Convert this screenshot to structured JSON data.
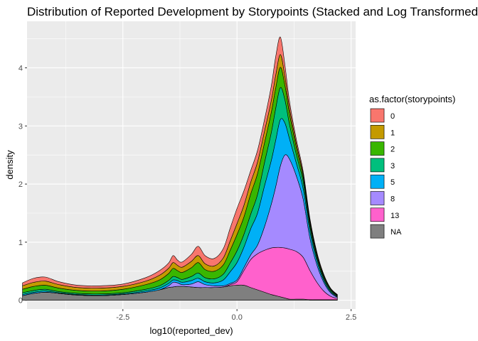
{
  "chart_data": {
    "type": "area",
    "stacked": true,
    "title": "Distribution of Reported Development by Storypoints (Stacked and Log Transformed)",
    "xlabel": "log10(reported_dev)",
    "ylabel": "density",
    "xlim": [
      -4.6,
      2.6
    ],
    "ylim": [
      -0.15,
      4.8
    ],
    "x_ticks": [
      -2.5,
      0.0,
      2.5
    ],
    "x_tick_labels": [
      "-2.5",
      "0.0",
      "2.5"
    ],
    "y_ticks": [
      0,
      1,
      2,
      3,
      4
    ],
    "y_tick_labels": [
      "0",
      "1",
      "2",
      "3",
      "4"
    ],
    "grid": true,
    "legend": {
      "title": "as.factor(storypoints)",
      "position": "right"
    },
    "x": [
      -4.7,
      -4.45,
      -4.2,
      -3.9,
      -3.5,
      -3.0,
      -2.5,
      -2.0,
      -1.7,
      -1.5,
      -1.4,
      -1.3,
      -1.2,
      -1.0,
      -0.85,
      -0.7,
      -0.5,
      -0.3,
      -0.15,
      0.0,
      0.15,
      0.3,
      0.45,
      0.6,
      0.75,
      0.85,
      0.95,
      1.05,
      1.15,
      1.3,
      1.45,
      1.6,
      1.75,
      1.9,
      2.05,
      2.2
    ],
    "series": [
      {
        "name": "NA",
        "color": "#7f7f7f",
        "values": [
          0.08,
          0.12,
          0.14,
          0.12,
          0.09,
          0.08,
          0.1,
          0.14,
          0.18,
          0.22,
          0.23,
          0.24,
          0.24,
          0.23,
          0.22,
          0.22,
          0.22,
          0.23,
          0.25,
          0.26,
          0.26,
          0.22,
          0.18,
          0.14,
          0.1,
          0.08,
          0.06,
          0.04,
          0.02,
          0.02,
          0.02,
          0.01,
          0.01,
          0.01,
          0.01,
          0.01
        ]
      },
      {
        "name": "13",
        "color": "#ff61cc",
        "values": [
          0.0,
          0.0,
          0.0,
          0.0,
          0.0,
          0.0,
          0.0,
          0.0,
          0.0,
          0.0,
          0.0,
          0.0,
          0.0,
          0.0,
          0.0,
          0.0,
          0.0,
          0.0,
          0.02,
          0.06,
          0.25,
          0.48,
          0.62,
          0.72,
          0.8,
          0.83,
          0.85,
          0.86,
          0.86,
          0.82,
          0.72,
          0.5,
          0.3,
          0.15,
          0.06,
          0.02
        ]
      },
      {
        "name": "8",
        "color": "#a58aff",
        "values": [
          0.0,
          0.0,
          0.0,
          0.0,
          0.0,
          0.0,
          0.0,
          0.0,
          0.0,
          0.03,
          0.08,
          0.06,
          0.03,
          0.05,
          0.1,
          0.05,
          0.03,
          0.02,
          0.02,
          0.03,
          0.05,
          0.08,
          0.15,
          0.4,
          0.75,
          1.05,
          1.4,
          1.6,
          1.55,
          1.3,
          1.0,
          0.55,
          0.3,
          0.15,
          0.06,
          0.02
        ]
      },
      {
        "name": "5",
        "color": "#00b0f6",
        "values": [
          0.02,
          0.02,
          0.02,
          0.01,
          0.01,
          0.01,
          0.01,
          0.02,
          0.03,
          0.04,
          0.04,
          0.04,
          0.04,
          0.06,
          0.06,
          0.05,
          0.05,
          0.1,
          0.2,
          0.3,
          0.35,
          0.45,
          0.55,
          0.7,
          0.75,
          0.8,
          0.8,
          0.55,
          0.35,
          0.22,
          0.18,
          0.12,
          0.07,
          0.04,
          0.02,
          0.01
        ]
      },
      {
        "name": "3",
        "color": "#00bf7d",
        "values": [
          0.03,
          0.03,
          0.03,
          0.02,
          0.02,
          0.02,
          0.02,
          0.03,
          0.04,
          0.05,
          0.06,
          0.05,
          0.05,
          0.07,
          0.09,
          0.07,
          0.07,
          0.1,
          0.15,
          0.2,
          0.22,
          0.25,
          0.32,
          0.4,
          0.48,
          0.55,
          0.55,
          0.4,
          0.25,
          0.15,
          0.12,
          0.08,
          0.05,
          0.03,
          0.02,
          0.01
        ]
      },
      {
        "name": "2",
        "color": "#39b600",
        "values": [
          0.06,
          0.07,
          0.07,
          0.06,
          0.05,
          0.05,
          0.06,
          0.08,
          0.1,
          0.12,
          0.14,
          0.12,
          0.12,
          0.15,
          0.18,
          0.14,
          0.13,
          0.16,
          0.22,
          0.28,
          0.3,
          0.35,
          0.36,
          0.34,
          0.35,
          0.35,
          0.35,
          0.25,
          0.18,
          0.12,
          0.08,
          0.06,
          0.04,
          0.03,
          0.02,
          0.01
        ]
      },
      {
        "name": "1",
        "color": "#c49a00",
        "values": [
          0.06,
          0.07,
          0.07,
          0.06,
          0.05,
          0.05,
          0.05,
          0.06,
          0.08,
          0.09,
          0.1,
          0.09,
          0.09,
          0.11,
          0.12,
          0.1,
          0.09,
          0.12,
          0.16,
          0.19,
          0.2,
          0.2,
          0.2,
          0.2,
          0.2,
          0.22,
          0.22,
          0.15,
          0.1,
          0.07,
          0.05,
          0.04,
          0.03,
          0.02,
          0.01,
          0.01
        ]
      },
      {
        "name": "0",
        "color": "#f8766d",
        "values": [
          0.05,
          0.07,
          0.07,
          0.05,
          0.04,
          0.04,
          0.04,
          0.06,
          0.08,
          0.09,
          0.12,
          0.09,
          0.09,
          0.12,
          0.16,
          0.14,
          0.13,
          0.16,
          0.22,
          0.26,
          0.25,
          0.2,
          0.2,
          0.2,
          0.25,
          0.32,
          0.3,
          0.2,
          0.12,
          0.07,
          0.05,
          0.04,
          0.03,
          0.02,
          0.01,
          0.01
        ]
      }
    ],
    "legend_order": [
      "0",
      "1",
      "2",
      "3",
      "5",
      "8",
      "13",
      "NA"
    ]
  }
}
